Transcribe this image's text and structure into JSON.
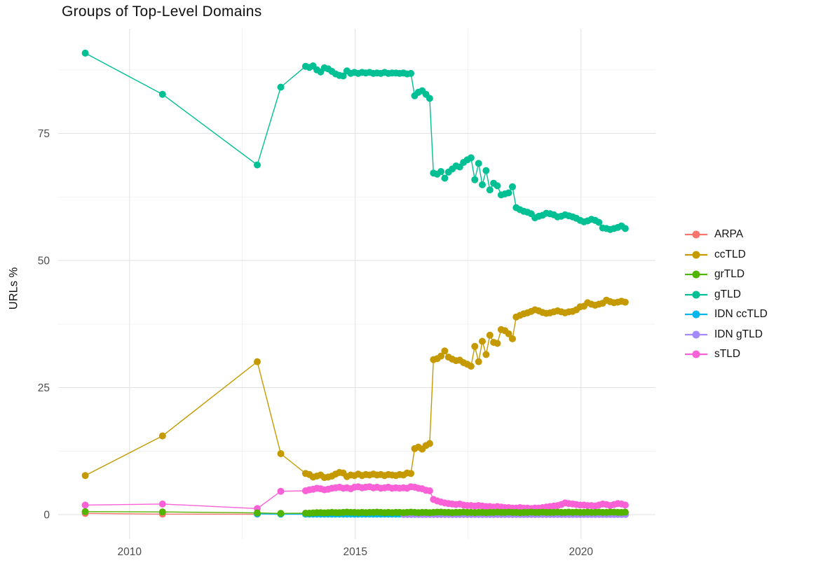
{
  "chart_data": {
    "type": "line",
    "title": "Groups of Top-Level Domains",
    "ylabel": "URLs %",
    "xlabel": "",
    "grid": true,
    "legend_position": "right",
    "x_domain": [
      2008.42,
      2021.65
    ],
    "y_domain": [
      -4.8,
      95.6
    ],
    "x_ticks": [
      2010,
      2015,
      2020
    ],
    "y_ticks": [
      0,
      25,
      50,
      75
    ],
    "x_minor": [
      2012.5,
      2017.5
    ],
    "y_minor": [
      12.5,
      37.5,
      62.5,
      87.5
    ],
    "series": [
      {
        "name": "ARPA",
        "label": "ARPA",
        "color": "#F8766D",
        "z": 1,
        "sparse": [
          [
            2009.02,
            0.25
          ],
          [
            2010.73,
            0.12
          ],
          [
            2012.83,
            0.1
          ]
        ]
      },
      {
        "name": "ccTLD",
        "label": "ccTLD",
        "color": "#C49A00",
        "z": 5,
        "sparse": [
          [
            2009.02,
            7.7
          ],
          [
            2010.73,
            15.5
          ],
          [
            2012.83,
            30.1
          ],
          [
            2013.35,
            12.0
          ]
        ],
        "dense_start": 2013.9,
        "dense_step": 0.0833,
        "dense_values": [
          8.1,
          7.9,
          7.4,
          7.6,
          7.8,
          7.3,
          7.4,
          7.6,
          8.0,
          8.3,
          8.2,
          7.5,
          7.8,
          7.7,
          8.0,
          7.7,
          7.9,
          7.8,
          8.0,
          7.8,
          7.9,
          7.7,
          7.9,
          7.8,
          7.7,
          7.9,
          7.8,
          8.2,
          8.1,
          13.0,
          13.3,
          12.9,
          13.6,
          14.0,
          30.5,
          30.7,
          31.2,
          32.2,
          31.0,
          30.6,
          30.3,
          30.4,
          29.9,
          29.6,
          29.2,
          33.1,
          30.1,
          34.1,
          31.5,
          35.3,
          33.9,
          33.7,
          36.4,
          36.2,
          35.6,
          34.6,
          38.9,
          39.2,
          39.5,
          39.7,
          40.0,
          40.3,
          40.1,
          39.8,
          39.6,
          39.7,
          39.9,
          40.1,
          39.9,
          39.7,
          39.9,
          40.0,
          40.3,
          40.9,
          41.0,
          41.7,
          41.4,
          41.2,
          41.4,
          41.6,
          42.2,
          41.9,
          41.7,
          41.8,
          42.0,
          41.8
        ]
      },
      {
        "name": "grTLD",
        "label": "grTLD",
        "color": "#53B400",
        "z": 7,
        "sparse": [
          [
            2009.02,
            0.6
          ],
          [
            2010.73,
            0.55
          ],
          [
            2012.83,
            0.35
          ],
          [
            2013.35,
            0.25
          ]
        ],
        "dense_start": 2013.9,
        "dense_step": 0.0833,
        "dense_values": [
          0.3,
          0.3,
          0.35,
          0.4,
          0.4,
          0.35,
          0.4,
          0.45,
          0.4,
          0.4,
          0.45,
          0.5,
          0.45,
          0.45,
          0.4,
          0.45,
          0.4,
          0.45,
          0.45,
          0.5,
          0.45,
          0.4,
          0.45,
          0.4,
          0.45,
          0.45,
          0.4,
          0.45,
          0.5,
          0.45,
          0.4,
          0.45,
          0.45,
          0.4,
          0.45,
          0.5,
          0.5,
          0.45,
          0.45,
          0.4,
          0.45,
          0.45,
          0.5,
          0.45,
          0.45,
          0.4,
          0.45,
          0.45,
          0.4,
          0.45,
          0.45,
          0.5,
          0.45,
          0.45,
          0.5,
          0.45,
          0.45,
          0.4,
          0.45,
          0.45,
          0.5,
          0.45,
          0.45,
          0.5,
          0.45,
          0.45,
          0.45,
          0.5,
          0.45,
          0.45,
          0.5,
          0.45,
          0.5,
          0.45,
          0.45,
          0.5,
          0.45,
          0.45,
          0.5,
          0.45,
          0.45,
          0.5,
          0.5,
          0.45,
          0.45,
          0.5
        ]
      },
      {
        "name": "gTLD",
        "label": "gTLD",
        "color": "#00C094",
        "z": 6,
        "sparse": [
          [
            2009.02,
            90.8
          ],
          [
            2010.73,
            82.7
          ],
          [
            2012.83,
            68.8
          ],
          [
            2013.35,
            84.1
          ]
        ],
        "dense_start": 2013.9,
        "dense_step": 0.0833,
        "dense_values": [
          88.2,
          88.0,
          88.3,
          87.5,
          87.1,
          87.9,
          87.7,
          87.2,
          86.7,
          86.4,
          86.3,
          87.3,
          86.8,
          87.0,
          86.8,
          87.0,
          86.9,
          87.0,
          86.8,
          86.9,
          86.8,
          87.0,
          86.8,
          86.9,
          86.9,
          86.8,
          86.9,
          86.7,
          86.8,
          82.4,
          83.1,
          83.4,
          82.7,
          81.9,
          67.2,
          67.0,
          67.5,
          66.2,
          67.4,
          68.0,
          68.6,
          68.4,
          69.3,
          69.8,
          70.2,
          65.9,
          69.1,
          64.9,
          67.7,
          63.9,
          65.2,
          64.7,
          62.9,
          63.1,
          63.3,
          64.5,
          60.4,
          60.0,
          59.7,
          59.5,
          59.2,
          58.4,
          58.7,
          58.9,
          59.3,
          59.2,
          59.0,
          58.6,
          58.7,
          59.0,
          58.8,
          58.6,
          58.3,
          57.9,
          57.6,
          57.8,
          58.1,
          57.9,
          57.5,
          56.4,
          56.3,
          56.1,
          56.3,
          56.5,
          56.8,
          56.3
        ]
      },
      {
        "name": "IDN ccTLD",
        "label": "IDN ccTLD",
        "color": "#00B6EB",
        "z": 2,
        "sparse": [
          [
            2012.83,
            0.15
          ],
          [
            2013.35,
            0.1
          ]
        ],
        "dense_start": 2013.9,
        "dense_step": 0.0833,
        "dense_values": [
          0.1,
          0.1,
          0.1,
          0.1,
          0.1,
          0.1,
          0.1,
          0.1,
          0.1,
          0.1,
          0.1,
          0.1,
          0.1,
          0.1,
          0.1,
          0.1,
          0.1,
          0.1,
          0.1,
          0.1,
          0.1,
          0.1,
          0.1,
          0.1,
          0.1,
          0.1,
          0.1,
          0.1,
          0.1,
          0.1,
          0.1,
          0.1,
          0.1,
          0.1,
          0.1,
          0.1,
          0.1,
          0.1,
          0.1,
          0.1,
          0.1,
          0.1,
          0.1,
          0.1,
          0.1,
          0.1,
          0.1,
          0.1,
          0.1,
          0.1,
          0.1,
          0.1,
          0.1,
          0.1,
          0.1,
          0.1,
          0.1,
          0.1,
          0.1,
          0.1,
          0.1,
          0.1,
          0.1,
          0.1,
          0.1,
          0.1,
          0.1,
          0.1,
          0.1,
          0.1,
          0.1,
          0.1,
          0.1,
          0.1,
          0.1,
          0.1,
          0.1,
          0.1,
          0.1,
          0.1,
          0.1,
          0.1,
          0.1,
          0.1,
          0.1,
          0.1
        ]
      },
      {
        "name": "IDN gTLD",
        "label": "IDN gTLD",
        "color": "#A58AFF",
        "z": 3,
        "sparse": [],
        "dense_start": 2016.07,
        "dense_step": 0.0833,
        "dense_values": [
          0.05,
          0.05,
          0.05,
          0.05,
          0.05,
          0.05,
          0.05,
          0.05,
          0.05,
          0.05,
          0.05,
          0.05,
          0.05,
          0.05,
          0.05,
          0.05,
          0.05,
          0.05,
          0.05,
          0.05,
          0.05,
          0.05,
          0.05,
          0.05,
          0.05,
          0.05,
          0.05,
          0.05,
          0.05,
          0.05,
          0.05,
          0.05,
          0.05,
          0.05,
          0.05,
          0.05,
          0.05,
          0.05,
          0.05,
          0.05,
          0.05,
          0.05,
          0.05,
          0.05,
          0.05,
          0.05,
          0.05,
          0.05,
          0.05,
          0.05,
          0.05,
          0.05,
          0.05,
          0.05,
          0.05,
          0.05,
          0.05,
          0.05,
          0.05,
          0.05
        ]
      },
      {
        "name": "sTLD",
        "label": "sTLD",
        "color": "#FB61D7",
        "z": 4,
        "sparse": [
          [
            2009.02,
            1.9
          ],
          [
            2010.73,
            2.1
          ],
          [
            2012.83,
            1.2
          ],
          [
            2013.35,
            4.6
          ]
        ],
        "dense_start": 2013.9,
        "dense_step": 0.0833,
        "dense_values": [
          4.7,
          4.9,
          5.0,
          5.2,
          5.1,
          4.9,
          5.0,
          5.2,
          5.3,
          5.4,
          5.2,
          5.3,
          5.1,
          5.4,
          5.5,
          5.3,
          5.4,
          5.5,
          5.3,
          5.4,
          5.2,
          5.3,
          5.4,
          5.2,
          5.3,
          5.2,
          5.3,
          5.2,
          5.5,
          5.4,
          5.2,
          5.1,
          4.8,
          4.7,
          3.0,
          2.7,
          2.5,
          2.3,
          2.2,
          2.1,
          2.0,
          2.1,
          1.9,
          1.8,
          1.8,
          1.7,
          1.8,
          1.7,
          1.6,
          1.6,
          1.5,
          1.6,
          1.5,
          1.4,
          1.4,
          1.3,
          1.3,
          1.4,
          1.3,
          1.3,
          1.2,
          1.3,
          1.3,
          1.4,
          1.5,
          1.6,
          1.7,
          1.8,
          2.0,
          2.3,
          2.2,
          2.1,
          2.0,
          1.9,
          1.9,
          1.8,
          1.8,
          1.7,
          1.9,
          2.1,
          2.0,
          1.8,
          2.0,
          2.2,
          2.1,
          1.9
        ]
      }
    ]
  }
}
